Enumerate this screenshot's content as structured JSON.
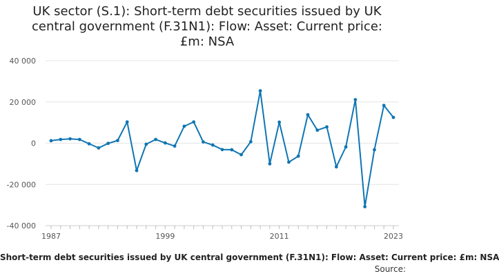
{
  "chart_data": {
    "type": "line",
    "title_lines": [
      "UK sector (S.1): Short-term debt securities issued by UK",
      "central government (F.31N1): Flow: Asset: Current price:",
      "£m: NSA"
    ],
    "ylim": [
      -40000,
      40000
    ],
    "yticks": [
      {
        "value": 40000,
        "label": "40 000"
      },
      {
        "value": 20000,
        "label": "20 000"
      },
      {
        "value": 0,
        "label": "0"
      },
      {
        "value": -20000,
        "label": "-20 000"
      },
      {
        "value": -40000,
        "label": "-40 000"
      }
    ],
    "xlim": [
      1987,
      2023
    ],
    "xticks": [
      {
        "value": 1987,
        "label": "1987"
      },
      {
        "value": 1999,
        "label": "1999"
      },
      {
        "value": 2011,
        "label": "2011"
      },
      {
        "value": 2023,
        "label": "2023"
      }
    ],
    "grid": true,
    "line_color": "#0f75b3",
    "series": [
      {
        "x": [
          1987,
          1988,
          1989,
          1990,
          1991,
          1992,
          1993,
          1994,
          1995,
          1996,
          1997,
          1998,
          1999,
          2000,
          2001,
          2002,
          2003,
          2004,
          2005,
          2006,
          2007,
          2008,
          2009,
          2010,
          2011,
          2012,
          2013,
          2014,
          2015,
          2016,
          2017,
          2018,
          2019,
          2020,
          2021,
          2022,
          2023
        ],
        "values": [
          1200,
          1800,
          2100,
          1800,
          -300,
          -2300,
          -100,
          1300,
          10300,
          -13300,
          -500,
          1800,
          100,
          -1400,
          8200,
          10300,
          600,
          -900,
          -3100,
          -3200,
          -5600,
          700,
          25400,
          -10000,
          10200,
          -9200,
          -6300,
          13800,
          6300,
          7900,
          -11500,
          -1800,
          21100,
          -30800,
          -3200,
          18300,
          12500
        ]
      }
    ],
    "footer_series_label": "Short-term debt securities issued by UK central government (F.31N1): Flow: Asset: Current price: £m: NSA",
    "source_label": "Source:"
  }
}
